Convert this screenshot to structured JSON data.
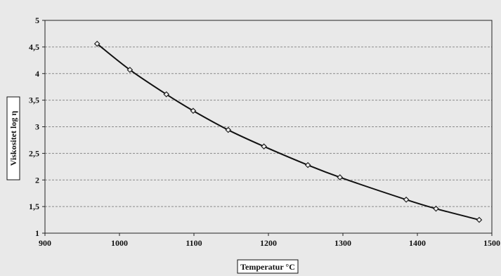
{
  "chart_data": {
    "type": "line",
    "title": "",
    "xlabel": "Temperatur °C",
    "ylabel": "Viskositet log η",
    "xlim": [
      900,
      1500
    ],
    "ylim": [
      1,
      5
    ],
    "x_ticks": [
      900,
      1000,
      1100,
      1200,
      1300,
      1400,
      1500
    ],
    "y_ticks": [
      1,
      1.5,
      2,
      2.5,
      3,
      3.5,
      4,
      4.5,
      5
    ],
    "y_tick_labels": [
      "1",
      "1,5",
      "2",
      "2,5",
      "3",
      "3,5",
      "4",
      "4,5",
      "5"
    ],
    "grid": true,
    "legend": "none",
    "series": [
      {
        "x": [
          970,
          1014,
          1063,
          1099,
          1146,
          1194,
          1253,
          1296,
          1385,
          1425,
          1483
        ],
        "y": [
          4.56,
          4.07,
          3.61,
          3.3,
          2.94,
          2.63,
          2.28,
          2.05,
          1.63,
          1.46,
          1.25
        ],
        "color": "#111111"
      }
    ]
  }
}
